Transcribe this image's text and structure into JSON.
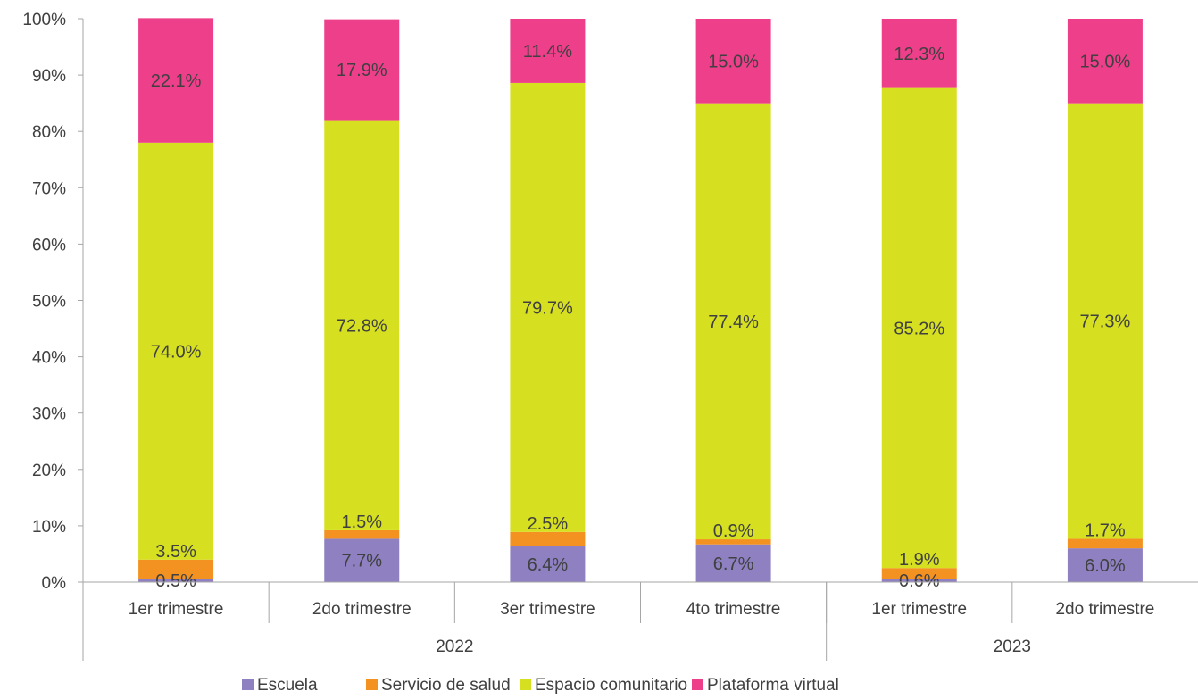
{
  "chart_data": {
    "type": "bar",
    "stacked": true,
    "percent": true,
    "title": "",
    "xlabel": "",
    "ylabel": "",
    "ylim": [
      0,
      100
    ],
    "y_ticks": [
      "0%",
      "10%",
      "20%",
      "30%",
      "40%",
      "50%",
      "60%",
      "70%",
      "80%",
      "90%",
      "100%"
    ],
    "categories": [
      "1er trimestre",
      "2do trimestre",
      "3er trimestre",
      "4to trimestre",
      "1er trimestre",
      "2do trimestre"
    ],
    "groups": [
      {
        "label": "2022",
        "span": 4
      },
      {
        "label": "2023",
        "span": 2
      }
    ],
    "series": [
      {
        "name": "Escuela",
        "color": "#8e80c1",
        "values": [
          0.5,
          7.7,
          6.4,
          6.7,
          0.6,
          6.0
        ],
        "labels": [
          "0.5%",
          "7.7%",
          "6.4%",
          "6.7%",
          "0.6%",
          "6.0%"
        ]
      },
      {
        "name": "Servicio de salud",
        "color": "#f39220",
        "values": [
          3.5,
          1.5,
          2.5,
          0.9,
          1.9,
          1.7
        ],
        "labels": [
          "3.5%",
          "1.5%",
          "2.5%",
          "0.9%",
          "1.9%",
          "1.7%"
        ]
      },
      {
        "name": "Espacio comunitario",
        "color": "#d6e021",
        "values": [
          74.0,
          72.8,
          79.7,
          77.4,
          85.2,
          77.3
        ],
        "labels": [
          "74.0%",
          "72.8%",
          "79.7%",
          "77.4%",
          "85.2%",
          "77.3%"
        ]
      },
      {
        "name": "Plataforma virtual",
        "color": "#ee3f8b",
        "values": [
          22.1,
          17.9,
          11.4,
          15.0,
          12.3,
          15.0
        ],
        "labels": [
          "22.1%",
          "17.9%",
          "11.4%",
          "15.0%",
          "12.3%",
          "15.0%"
        ]
      }
    ],
    "legend_position": "bottom",
    "grid": false
  }
}
